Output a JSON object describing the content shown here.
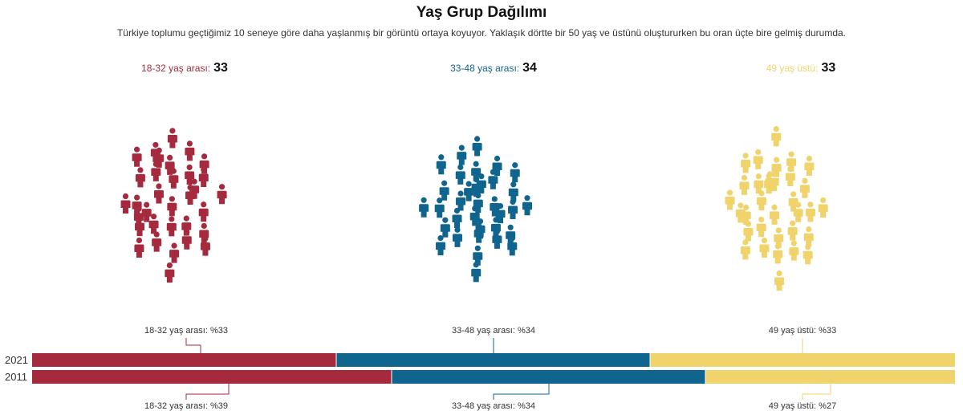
{
  "title": "Yaş Grup Dağılımı",
  "subtitle": "Türkiye toplumu geçtiğimiz 10 seneye göre daha yaşlanmış bir görüntü ortaya koyuyor. Yaklaşık dörtte bir 50 yaş ve üstünü oluştururken bu oran üçte bire gelmiş durumda.",
  "colors": {
    "young": "#a52a3d",
    "middle": "#10658f",
    "old": "#f0d36a",
    "axis_text": "#333333"
  },
  "icon": "person-icon",
  "groups": [
    {
      "label": "18-32 yaş arası:",
      "value": "33",
      "color": "#a52a3d"
    },
    {
      "label": "33-48 yaş arası:",
      "value": "34",
      "color": "#10658f"
    },
    {
      "label": "49 yaş üstü:",
      "value": "33",
      "color": "#f0d36a"
    }
  ],
  "chart_data": {
    "type": "bar",
    "orientation": "horizontal",
    "stacked": true,
    "categories": [
      "2021",
      "2011"
    ],
    "series": [
      {
        "name": "18-32 yaş arası",
        "values": [
          33,
          39
        ],
        "labels": [
          "18-32 yaş arası: %33",
          "18-32 yaş arası: %39"
        ],
        "color": "#a52a3d"
      },
      {
        "name": "33-48 yaş arası",
        "values": [
          34,
          34
        ],
        "labels": [
          "33-48 yaş arası: %34",
          "33-48 yaş arası: %34"
        ],
        "color": "#10658f"
      },
      {
        "name": "49 yaş üstü",
        "values": [
          33,
          27
        ],
        "labels": [
          "49 yaş üstü: %33",
          "49 yaş üstü: %27"
        ],
        "color": "#f0d36a"
      }
    ],
    "xlim": [
      0,
      100
    ]
  }
}
